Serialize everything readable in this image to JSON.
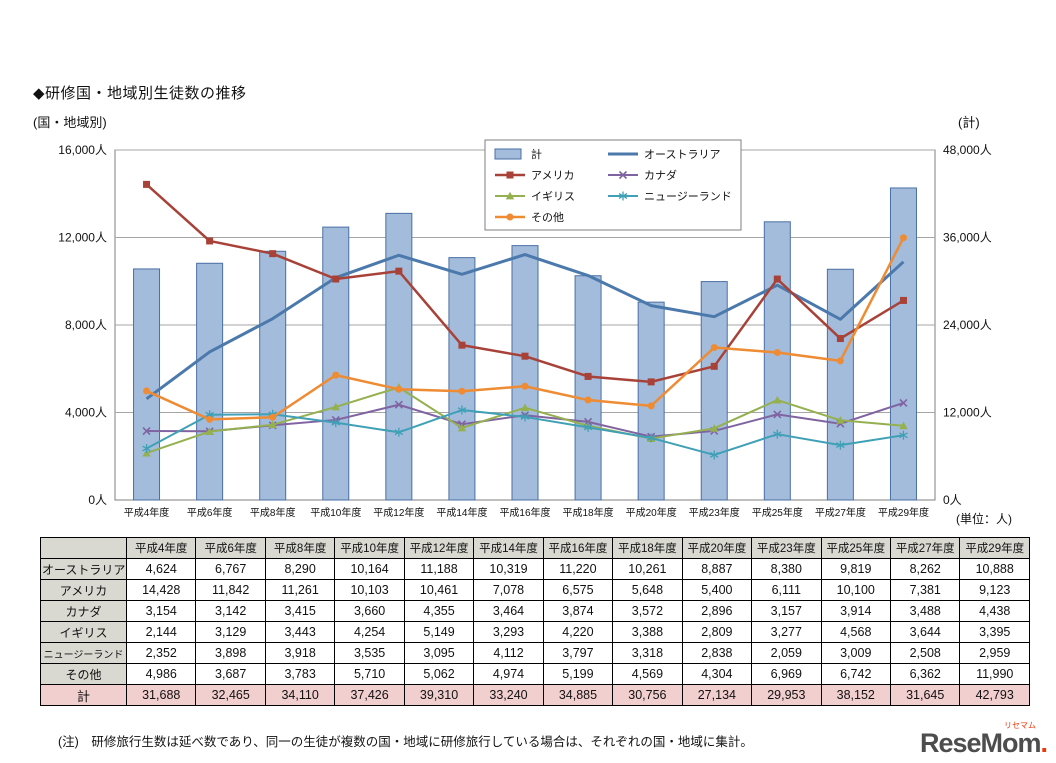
{
  "title": "◆研修国・地域別生徒数の推移",
  "left_axis_caption": "(国・地域別)",
  "right_axis_caption": "(計)",
  "unit_label": "(単位：人)",
  "note": "(注)　研修旅行生数は延べ数であり、同一の生徒が複数の国・地域に研修旅行している場合は、それぞれの国・地域に集計。",
  "logo": {
    "text": "ReseMom",
    "dot": ".",
    "ruby": "リセマム"
  },
  "chart_data": {
    "type": "bar+line",
    "title": "研修国・地域別生徒数の推移",
    "categories": [
      "平成4年度",
      "平成6年度",
      "平成8年度",
      "平成10年度",
      "平成12年度",
      "平成14年度",
      "平成16年度",
      "平成18年度",
      "平成20年度",
      "平成23年度",
      "平成25年度",
      "平成27年度",
      "平成29年度"
    ],
    "bar_series": {
      "name": "計",
      "axis": "right",
      "color": "#A3BCDC",
      "border": "#4A6FA5",
      "values": [
        31688,
        32465,
        34110,
        37426,
        39310,
        33240,
        34885,
        30756,
        27134,
        29953,
        38152,
        31645,
        42793
      ]
    },
    "line_series": [
      {
        "name": "オーストラリア",
        "color": "#4B79AC",
        "marker": "none",
        "width": 3,
        "values": [
          4624,
          6767,
          8290,
          10164,
          11188,
          10319,
          11220,
          10261,
          8887,
          8380,
          9819,
          8262,
          10888
        ]
      },
      {
        "name": "アメリカ",
        "color": "#A84238",
        "marker": "square",
        "width": 2.5,
        "values": [
          14428,
          11842,
          11261,
          10103,
          10461,
          7078,
          6575,
          5648,
          5400,
          6111,
          10100,
          7381,
          9123
        ]
      },
      {
        "name": "カナダ",
        "color": "#8064A2",
        "marker": "x",
        "width": 2,
        "values": [
          3154,
          3142,
          3415,
          3660,
          4355,
          3464,
          3874,
          3572,
          2896,
          3157,
          3914,
          3488,
          4438
        ]
      },
      {
        "name": "イギリス",
        "color": "#94B04F",
        "marker": "triangle",
        "width": 2,
        "values": [
          2144,
          3129,
          3443,
          4254,
          5149,
          3293,
          4220,
          3388,
          2809,
          3277,
          4568,
          3644,
          3395
        ]
      },
      {
        "name": "ニュージーランド",
        "color": "#3FA0B6",
        "marker": "asterisk",
        "width": 2,
        "values": [
          2352,
          3898,
          3918,
          3535,
          3095,
          4112,
          3797,
          3318,
          2838,
          2059,
          3009,
          2508,
          2959
        ]
      },
      {
        "name": "その他",
        "color": "#EE8B33",
        "marker": "circle",
        "width": 2.5,
        "values": [
          4986,
          3687,
          3783,
          5710,
          5062,
          4974,
          5199,
          4569,
          4304,
          6969,
          6742,
          6362,
          11990
        ]
      }
    ],
    "left_axis": {
      "max": 16000,
      "ticks": [
        "0人",
        "4,000人",
        "8,000人",
        "12,000人",
        "16,000人"
      ]
    },
    "right_axis": {
      "max": 48000,
      "ticks": [
        "0人",
        "12,000人",
        "24,000人",
        "36,000人",
        "48,000人"
      ]
    },
    "legend": {
      "position": "top-inside",
      "col1": [
        "計",
        "アメリカ",
        "イギリス",
        "その他"
      ],
      "col2": [
        "オーストラリア",
        "カナダ",
        "ニュージーランド"
      ]
    },
    "grid": true
  },
  "table": {
    "corner": "",
    "columns": [
      "平成4年度",
      "平成6年度",
      "平成8年度",
      "平成10年度",
      "平成12年度",
      "平成14年度",
      "平成16年度",
      "平成18年度",
      "平成20年度",
      "平成23年度",
      "平成25年度",
      "平成27年度",
      "平成29年度"
    ],
    "rows": [
      {
        "label": "オーストラリア",
        "values": [
          "4,624",
          "6,767",
          "8,290",
          "10,164",
          "11,188",
          "10,319",
          "11,220",
          "10,261",
          "8,887",
          "8,380",
          "9,819",
          "8,262",
          "10,888"
        ]
      },
      {
        "label": "アメリカ",
        "values": [
          "14,428",
          "11,842",
          "11,261",
          "10,103",
          "10,461",
          "7,078",
          "6,575",
          "5,648",
          "5,400",
          "6,111",
          "10,100",
          "7,381",
          "9,123"
        ]
      },
      {
        "label": "カナダ",
        "values": [
          "3,154",
          "3,142",
          "3,415",
          "3,660",
          "4,355",
          "3,464",
          "3,874",
          "3,572",
          "2,896",
          "3,157",
          "3,914",
          "3,488",
          "4,438"
        ]
      },
      {
        "label": "イギリス",
        "values": [
          "2,144",
          "3,129",
          "3,443",
          "4,254",
          "5,149",
          "3,293",
          "4,220",
          "3,388",
          "2,809",
          "3,277",
          "4,568",
          "3,644",
          "3,395"
        ]
      },
      {
        "label": "ニュージーランド",
        "values": [
          "2,352",
          "3,898",
          "3,918",
          "3,535",
          "3,095",
          "4,112",
          "3,797",
          "3,318",
          "2,838",
          "2,059",
          "3,009",
          "2,508",
          "2,959"
        ]
      },
      {
        "label": "その他",
        "values": [
          "4,986",
          "3,687",
          "3,783",
          "5,710",
          "5,062",
          "4,974",
          "5,199",
          "4,569",
          "4,304",
          "6,969",
          "6,742",
          "6,362",
          "11,990"
        ]
      },
      {
        "label": "計",
        "total": true,
        "values": [
          "31,688",
          "32,465",
          "34,110",
          "37,426",
          "39,310",
          "33,240",
          "34,885",
          "30,756",
          "27,134",
          "29,953",
          "38,152",
          "31,645",
          "42,793"
        ]
      }
    ]
  }
}
